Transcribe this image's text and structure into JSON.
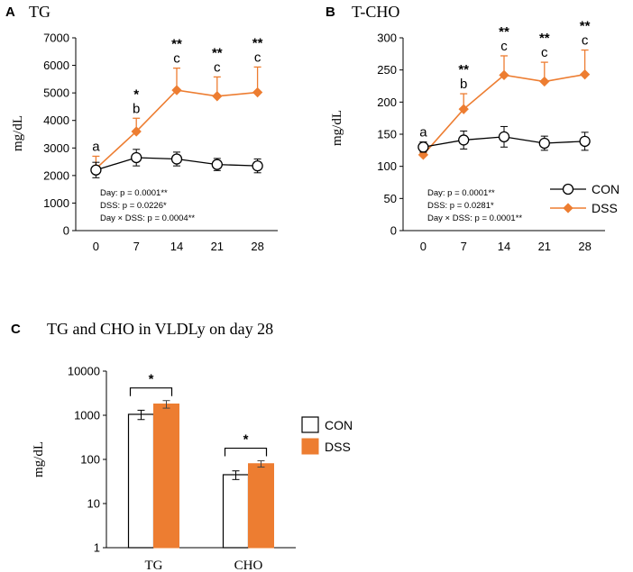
{
  "colors": {
    "con": "#000000",
    "dss": "#ed7d31",
    "con_marker_fill": "#ffffff",
    "axis": "#000000"
  },
  "legend": {
    "con": "CON",
    "dss": "DSS"
  },
  "chart_data": [
    {
      "panel": "A",
      "title": "TG",
      "type": "line",
      "ylabel": "mg/dL",
      "ylim": [
        0,
        7000
      ],
      "yticks": [
        "0",
        "1000",
        "2000",
        "3000",
        "4000",
        "5000",
        "6000",
        "7000"
      ],
      "x": [
        "0",
        "7",
        "14",
        "21",
        "28"
      ],
      "series": [
        {
          "name": "CON",
          "values": [
            2200,
            2650,
            2600,
            2400,
            2350
          ],
          "errors": [
            280,
            300,
            250,
            220,
            250
          ]
        },
        {
          "name": "DSS",
          "values": [
            2250,
            3600,
            5100,
            4880,
            5020
          ],
          "errors": [
            450,
            480,
            800,
            700,
            920
          ]
        }
      ],
      "annotations": [
        {
          "stars": "",
          "letter": "a"
        },
        {
          "stars": "*",
          "letter": "b"
        },
        {
          "stars": "**",
          "letter": "c"
        },
        {
          "stars": "**",
          "letter": "c"
        },
        {
          "stars": "**",
          "letter": "c"
        }
      ],
      "stats": [
        "Day: p = 0.0001**",
        "DSS: p = 0.0226*",
        "Day × DSS: p = 0.0004**"
      ]
    },
    {
      "panel": "B",
      "title": "T-CHO",
      "type": "line",
      "ylabel": "mg/dL",
      "ylim": [
        0,
        300
      ],
      "yticks": [
        "0",
        "50",
        "100",
        "150",
        "200",
        "250",
        "300"
      ],
      "x": [
        "0",
        "7",
        "14",
        "21",
        "28"
      ],
      "series": [
        {
          "name": "CON",
          "values": [
            130,
            141,
            146,
            136,
            139
          ],
          "errors": [
            8,
            14,
            16,
            11,
            14
          ]
        },
        {
          "name": "DSS",
          "values": [
            118,
            189,
            242,
            232,
            243
          ],
          "errors": [
            4,
            24,
            30,
            30,
            38
          ]
        }
      ],
      "annotations": [
        {
          "stars": "",
          "letter": "a"
        },
        {
          "stars": "**",
          "letter": "b"
        },
        {
          "stars": "**",
          "letter": "c"
        },
        {
          "stars": "**",
          "letter": "c"
        },
        {
          "stars": "**",
          "letter": "c"
        }
      ],
      "stats": [
        "Day: p = 0.0001**",
        "DSS: p = 0.0281*",
        "Day × DSS: p = 0.0001**"
      ]
    },
    {
      "panel": "C",
      "title": "TG and CHO in VLDLy on day 28",
      "type": "bar",
      "ylabel": "mg/dL",
      "yscale": "log",
      "ylim": [
        1,
        10000
      ],
      "yticks": [
        "1",
        "10",
        "100",
        "1000",
        "10000"
      ],
      "categories": [
        "TG",
        "CHO"
      ],
      "series": [
        {
          "name": "CON",
          "values": [
            1050,
            45
          ],
          "errors": [
            250,
            10
          ]
        },
        {
          "name": "DSS",
          "values": [
            1800,
            80
          ],
          "errors": [
            350,
            13
          ]
        }
      ],
      "significance": [
        "*",
        "*"
      ]
    }
  ]
}
